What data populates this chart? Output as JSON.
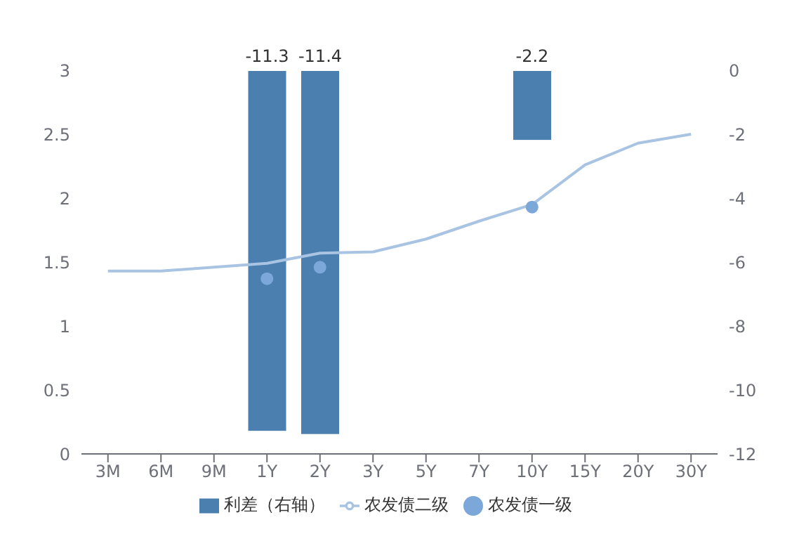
{
  "chart_data": {
    "type": "line",
    "categories": [
      "3M",
      "6M",
      "9M",
      "1Y",
      "2Y",
      "3Y",
      "5Y",
      "7Y",
      "10Y",
      "15Y",
      "20Y",
      "30Y"
    ],
    "series": [
      {
        "name": "利差（右轴）",
        "type": "bar",
        "axis": "y2",
        "color": "#4a7fb0",
        "values": [
          null,
          null,
          null,
          -11.3,
          -11.4,
          null,
          null,
          null,
          -2.2,
          null,
          null,
          null
        ],
        "value_labels": [
          null,
          null,
          null,
          "-11.3",
          "-11.4",
          null,
          null,
          null,
          "-2.2",
          null,
          null,
          null
        ]
      },
      {
        "name": "农发债二级",
        "color": "#a9c4e2",
        "marker": "none",
        "values": [
          1.43,
          1.43,
          1.46,
          1.49,
          1.57,
          1.58,
          1.68,
          1.82,
          1.95,
          2.26,
          2.43,
          2.5
        ]
      },
      {
        "name": "农发债一级",
        "type": "scatter",
        "color": "#7ba7d9",
        "values": [
          null,
          null,
          null,
          1.37,
          1.46,
          null,
          null,
          null,
          1.93,
          null,
          null,
          null
        ]
      }
    ],
    "ylim": [
      0,
      3
    ],
    "yticks": [
      0,
      0.5,
      1,
      1.5,
      2,
      2.5,
      3
    ],
    "y2lim": [
      -12,
      0
    ],
    "y2ticks": [
      -12,
      -10,
      -8,
      -6,
      -4,
      -2,
      0
    ],
    "grid": false,
    "legend": "bottom"
  }
}
